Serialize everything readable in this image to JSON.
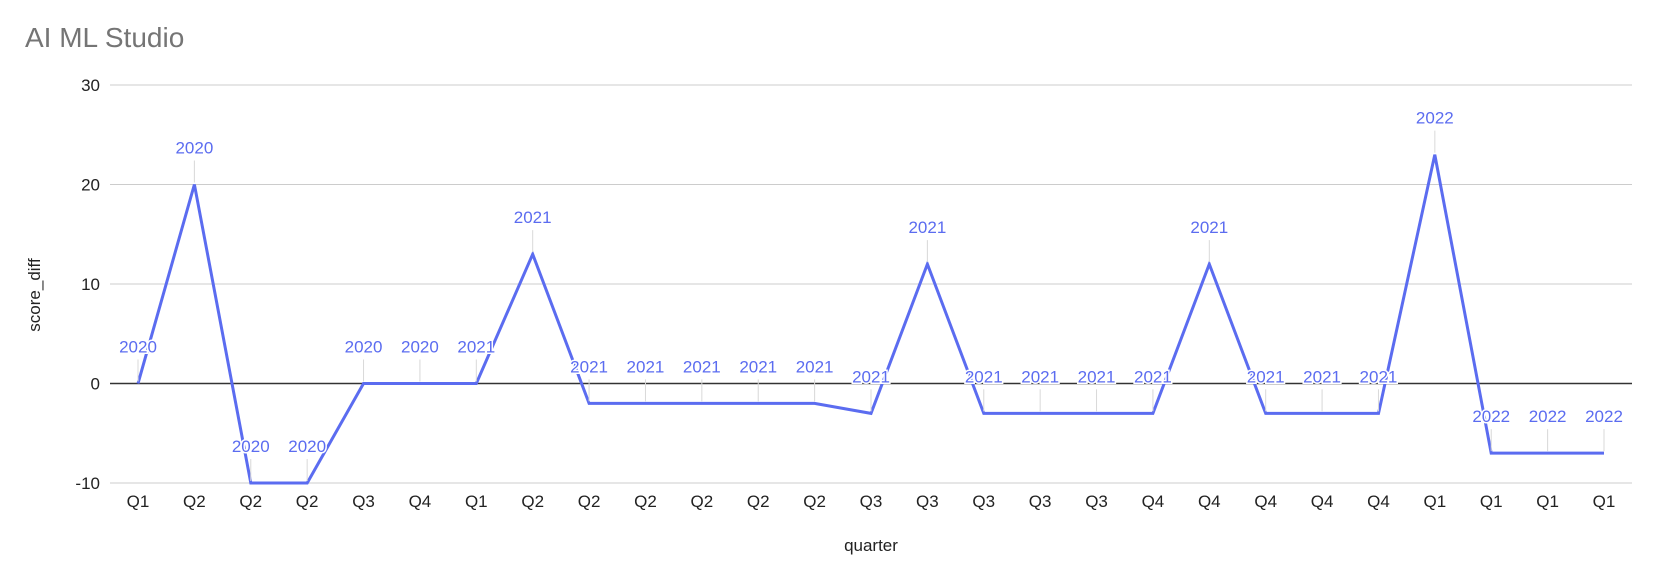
{
  "title": "AI ML Studio",
  "chart_data": {
    "type": "line",
    "title": "AI ML Studio",
    "xlabel": "quarter",
    "ylabel": "score_diff",
    "ylim": [
      -10,
      30
    ],
    "yticks": [
      -10,
      0,
      10,
      20,
      30
    ],
    "grid": true,
    "legend": "none",
    "line_color": "#5b6cf0",
    "zero_line_color": "#333333",
    "categories": [
      "Q1",
      "Q2",
      "Q2",
      "Q2",
      "Q3",
      "Q4",
      "Q1",
      "Q2",
      "Q2",
      "Q2",
      "Q2",
      "Q2",
      "Q2",
      "Q3",
      "Q3",
      "Q3",
      "Q3",
      "Q3",
      "Q4",
      "Q4",
      "Q4",
      "Q4",
      "Q4",
      "Q1",
      "Q1",
      "Q1",
      "Q1"
    ],
    "point_labels": [
      "2020",
      "2020",
      "2020",
      "2020",
      "2020",
      "2020",
      "2021",
      "2021",
      "2021",
      "2021",
      "2021",
      "2021",
      "2021",
      "2021",
      "2021",
      "2021",
      "2021",
      "2021",
      "2021",
      "2021",
      "2021",
      "2021",
      "2021",
      "2022",
      "2022",
      "2022",
      "2022"
    ],
    "series": [
      {
        "values": [
          0,
          20,
          -10,
          -10,
          0,
          0,
          0,
          13,
          -2,
          -2,
          -2,
          -2,
          -2,
          -3,
          12,
          -3,
          -3,
          -3,
          -3,
          12,
          -3,
          -3,
          -3,
          23,
          -7,
          -7,
          -7
        ]
      }
    ]
  }
}
